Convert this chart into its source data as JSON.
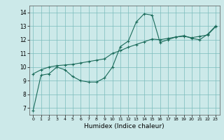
{
  "title": "",
  "xlabel": "Humidex (Indice chaleur)",
  "ylabel": "",
  "xlim": [
    -0.5,
    23.5
  ],
  "ylim": [
    6.5,
    14.5
  ],
  "xticks": [
    0,
    1,
    2,
    3,
    4,
    5,
    6,
    7,
    8,
    9,
    10,
    11,
    12,
    13,
    14,
    15,
    16,
    17,
    18,
    19,
    20,
    21,
    22,
    23
  ],
  "yticks": [
    7,
    8,
    9,
    10,
    11,
    12,
    13,
    14
  ],
  "bg_color": "#cce9e9",
  "line_color": "#1a6b5a",
  "line1_x": [
    0,
    1,
    2,
    3,
    4,
    5,
    6,
    7,
    8,
    9,
    10,
    11,
    12,
    13,
    14,
    15,
    16,
    17,
    18,
    19,
    20,
    21,
    22,
    23
  ],
  "line1_y": [
    6.8,
    9.4,
    9.5,
    10.0,
    9.8,
    9.3,
    9.0,
    8.9,
    8.9,
    9.2,
    10.0,
    11.5,
    11.9,
    13.3,
    13.9,
    13.8,
    11.8,
    12.0,
    12.2,
    12.3,
    12.1,
    12.0,
    12.4,
    13.0
  ],
  "line2_x": [
    0,
    1,
    2,
    3,
    4,
    5,
    6,
    7,
    8,
    9,
    10,
    11,
    12,
    13,
    14,
    15,
    16,
    17,
    18,
    19,
    20,
    21,
    22,
    23
  ],
  "line2_y": [
    9.5,
    9.8,
    10.0,
    10.1,
    10.15,
    10.2,
    10.3,
    10.4,
    10.5,
    10.6,
    11.0,
    11.2,
    11.45,
    11.65,
    11.85,
    12.05,
    12.0,
    12.1,
    12.2,
    12.25,
    12.15,
    12.25,
    12.35,
    12.95
  ]
}
